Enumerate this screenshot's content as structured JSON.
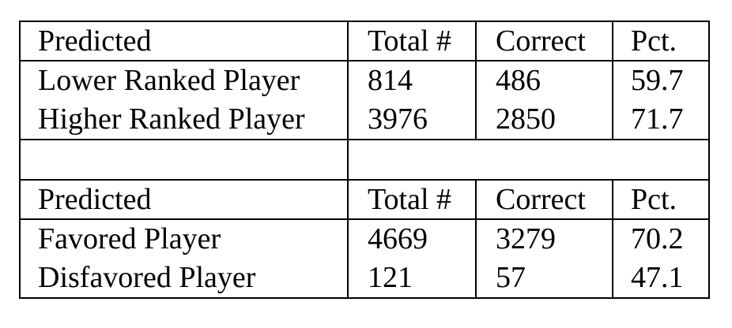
{
  "table1": {
    "headers": [
      "Predicted",
      "Total #",
      "Correct",
      "Pct."
    ],
    "rows": [
      [
        "Lower Ranked Player",
        "814",
        "486",
        "59.7"
      ],
      [
        "Higher Ranked Player",
        "3976",
        "2850",
        "71.7"
      ]
    ]
  },
  "table2": {
    "headers": [
      "Predicted",
      "Total #",
      "Correct",
      "Pct."
    ],
    "rows": [
      [
        "Favored Player",
        "4669",
        "3279",
        "70.2"
      ],
      [
        "Disfavored Player",
        "121",
        "57",
        "47.1"
      ]
    ]
  }
}
